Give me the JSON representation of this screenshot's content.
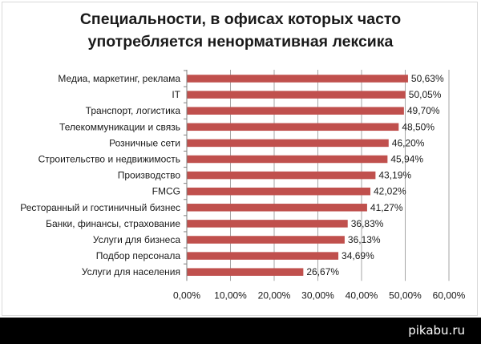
{
  "chart_data": {
    "type": "bar",
    "orientation": "horizontal",
    "title_lines": [
      "Специальности, в офисах которых часто",
      "употребляется ненормативная лексика"
    ],
    "categories": [
      "Медиа, маркетинг, реклама",
      "IT",
      "Транспорт, логистика",
      "Телекоммуникации и связь",
      "Розничные сети",
      "Строительство и недвижимость",
      "Производство",
      "FMCG",
      "Ресторанный и гостиничный бизнес",
      "Банки, финансы, страхование",
      "Услуги для бизнеса",
      "Подбор персонала",
      "Услуги для населения"
    ],
    "values": [
      50.63,
      50.05,
      49.7,
      48.5,
      46.2,
      45.94,
      43.19,
      42.02,
      41.27,
      36.83,
      36.13,
      34.69,
      26.67
    ],
    "value_labels": [
      "50,63%",
      "50,05%",
      "49,70%",
      "48,50%",
      "46,20%",
      "45,94%",
      "43,19%",
      "42,02%",
      "41,27%",
      "36,83%",
      "36,13%",
      "34,69%",
      "26,67%"
    ],
    "xlim": [
      0,
      60
    ],
    "x_ticks": [
      0,
      10,
      20,
      30,
      40,
      50,
      60
    ],
    "x_tick_labels": [
      "0,00%",
      "10,00%",
      "20,00%",
      "30,00%",
      "40,00%",
      "50,00%",
      "60,00%"
    ],
    "grid": "vertical",
    "legend": "none",
    "bar_color": "#c0504d",
    "grid_color": "#a6a6a6"
  },
  "footer": {
    "site": "pikabu.ru",
    "background": "#000000"
  }
}
